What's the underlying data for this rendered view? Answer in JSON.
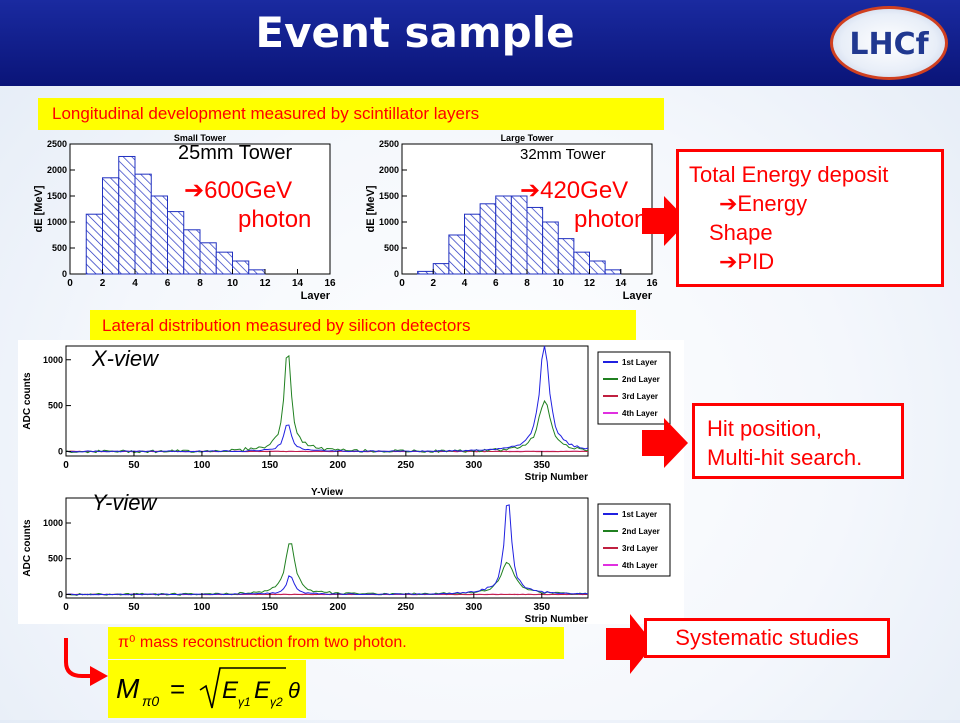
{
  "title": "Event sample",
  "logo_text": "LHCf",
  "banner_longitudinal": "Longitudinal development measured by scintillator layers",
  "banner_lateral": "Lateral distribution measured by silicon detectors",
  "banner_pi0": "π⁰ mass reconstruction from two photon.",
  "small_tower": {
    "plot_title": "Small Tower",
    "tower_label": "25mm Tower",
    "energy": "➔600GeV",
    "particle": "photon"
  },
  "large_tower": {
    "plot_title": "Large Tower",
    "tower_label": "32mm Tower",
    "energy": "➔420GeV",
    "particle": "photon"
  },
  "x_view_label": "X-view",
  "y_view_label": "Y-view",
  "y_view_plot_title": "Y-View",
  "box_energy": {
    "line1": "Total Energy deposit",
    "line2": "➔Energy",
    "line3": "Shape",
    "line4": "➔PID"
  },
  "box_hit": {
    "line1": "Hit position,",
    "line2": "Multi-hit search."
  },
  "box_systematic": "Systematic studies",
  "formula": "M_π0 = √(E_γ1 E_γ2) θ",
  "colors": {
    "title_bar": "#0a1478",
    "banner_bg": "#ffff00",
    "accent": "#ff0000"
  },
  "chart_data": [
    {
      "type": "bar",
      "title": "Small Tower",
      "xlabel": "Layer",
      "ylabel": "dE [MeV]",
      "xlim": [
        0,
        16
      ],
      "ylim": [
        0,
        2500
      ],
      "x_ticks": [
        0,
        2,
        4,
        6,
        8,
        10,
        12,
        14,
        16
      ],
      "y_ticks": [
        0,
        500,
        1000,
        1500,
        2000,
        2500
      ],
      "bin_edges": [
        0,
        1,
        2,
        3,
        4,
        5,
        6,
        7,
        8,
        9,
        10,
        11,
        12,
        13,
        14,
        15,
        16
      ],
      "values": [
        0,
        1150,
        1850,
        2260,
        1920,
        1500,
        1200,
        850,
        600,
        420,
        250,
        80,
        0,
        0,
        0,
        0
      ]
    },
    {
      "type": "bar",
      "title": "Large Tower",
      "xlabel": "Layer",
      "ylabel": "dE [MeV]",
      "xlim": [
        0,
        16
      ],
      "ylim": [
        0,
        2500
      ],
      "x_ticks": [
        0,
        2,
        4,
        6,
        8,
        10,
        12,
        14,
        16
      ],
      "y_ticks": [
        0,
        500,
        1000,
        1500,
        2000,
        2500
      ],
      "bin_edges": [
        0,
        1,
        2,
        3,
        4,
        5,
        6,
        7,
        8,
        9,
        10,
        11,
        12,
        13,
        14,
        15,
        16
      ],
      "values": [
        0,
        50,
        200,
        750,
        1150,
        1350,
        1500,
        1500,
        1280,
        1000,
        680,
        420,
        250,
        80,
        0,
        0
      ]
    },
    {
      "type": "line",
      "title": "",
      "xlabel": "Strip Number",
      "ylabel": "ADC counts",
      "xlim": [
        0,
        384
      ],
      "ylim": [
        -50,
        1150
      ],
      "x_ticks": [
        0,
        50,
        100,
        150,
        200,
        250,
        300,
        350
      ],
      "y_ticks": [
        0,
        500,
        1000
      ],
      "legend": "right",
      "series": [
        {
          "name": "1st Layer",
          "color": "#2020e0",
          "peaks": [
            [
              163,
              300,
              3
            ],
            [
              352,
              1180,
              4
            ]
          ],
          "base": 0,
          "noise": 12
        },
        {
          "name": "2nd Layer",
          "color": "#208020",
          "peaks": [
            [
              163,
              1060,
              3
            ],
            [
              352,
              540,
              5
            ]
          ],
          "base": 0,
          "noise": 30
        },
        {
          "name": "3rd Layer",
          "color": "#c02040",
          "peaks": [],
          "base": 0,
          "noise": 6
        },
        {
          "name": "4th Layer",
          "color": "#e030e0",
          "peaks": [],
          "base": 0,
          "noise": 4
        }
      ]
    },
    {
      "type": "line",
      "title": "Y-View",
      "xlabel": "Strip Number",
      "ylabel": "ADC counts",
      "xlim": [
        0,
        384
      ],
      "ylim": [
        -50,
        1350
      ],
      "x_ticks": [
        0,
        50,
        100,
        150,
        200,
        250,
        300,
        350
      ],
      "y_ticks": [
        0,
        500,
        1000
      ],
      "legend": "right",
      "series": [
        {
          "name": "1st Layer",
          "color": "#2020e0",
          "peaks": [
            [
              165,
              260,
              3
            ],
            [
              325,
              1300,
              3
            ]
          ],
          "base": 0,
          "noise": 12
        },
        {
          "name": "2nd Layer",
          "color": "#208020",
          "peaks": [
            [
              165,
              720,
              4
            ],
            [
              325,
              420,
              6
            ]
          ],
          "base": 0,
          "noise": 28
        },
        {
          "name": "3rd Layer",
          "color": "#c02040",
          "peaks": [],
          "base": 0,
          "noise": 6
        },
        {
          "name": "4th Layer",
          "color": "#e030e0",
          "peaks": [],
          "base": 0,
          "noise": 4
        }
      ]
    }
  ]
}
